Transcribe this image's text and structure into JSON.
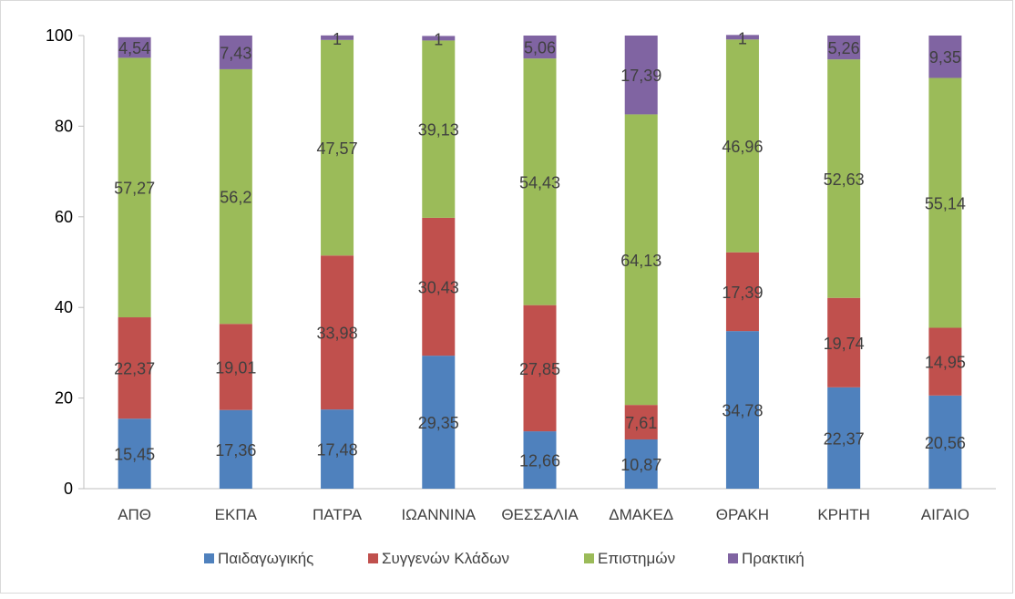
{
  "chart_data": {
    "type": "bar",
    "stacked": true,
    "categories": [
      "ΑΠΘ",
      "ΕΚΠΑ",
      "ΠΑΤΡΑ",
      "ΙΩΑΝΝΙΝΑ",
      "ΘΕΣΣΑΛΙΑ",
      "ΔΜΑΚΕΔ",
      "ΘΡΑΚΗ",
      "ΚΡΗΤΗ",
      "ΑΙΓΑΙΟ"
    ],
    "series": [
      {
        "name": "Παιδαγωγικής",
        "color": "#4f81bd",
        "values": [
          15.45,
          17.36,
          17.48,
          29.35,
          12.66,
          10.87,
          34.78,
          22.37,
          20.56
        ],
        "labels": [
          "15,45",
          "17,36",
          "17,48",
          "29,35",
          "12,66",
          "10,87",
          "34,78",
          "22,37",
          "20,56"
        ]
      },
      {
        "name": "Συγγενών Κλάδων",
        "color": "#c0504d",
        "values": [
          22.37,
          19.01,
          33.98,
          30.43,
          27.85,
          7.61,
          17.39,
          19.74,
          14.95
        ],
        "labels": [
          "22,37",
          "19,01",
          "33,98",
          "30,43",
          "27,85",
          "7,61",
          "17,39",
          "19,74",
          "14,95"
        ]
      },
      {
        "name": "Επιστημών",
        "color": "#9bbb59",
        "values": [
          57.27,
          56.2,
          47.57,
          39.13,
          54.43,
          64.13,
          46.96,
          52.63,
          55.14
        ],
        "labels": [
          "57,27",
          "56,2",
          "47,57",
          "39,13",
          "54,43",
          "64,13",
          "46,96",
          "52,63",
          "55,14"
        ]
      },
      {
        "name": "Πρακτική",
        "color": "#8064a2",
        "values": [
          4.54,
          7.43,
          1,
          1,
          5.06,
          17.39,
          1,
          5.26,
          9.35
        ],
        "labels": [
          "4,54",
          "7,43",
          "1",
          "1",
          "5,06",
          "17,39",
          "1",
          "5,26",
          "9,35"
        ]
      }
    ],
    "ylim": [
      0,
      100
    ],
    "yticks": [
      "0",
      "20",
      "40",
      "60",
      "80",
      "100"
    ],
    "legend": "bottom",
    "grid": false
  }
}
